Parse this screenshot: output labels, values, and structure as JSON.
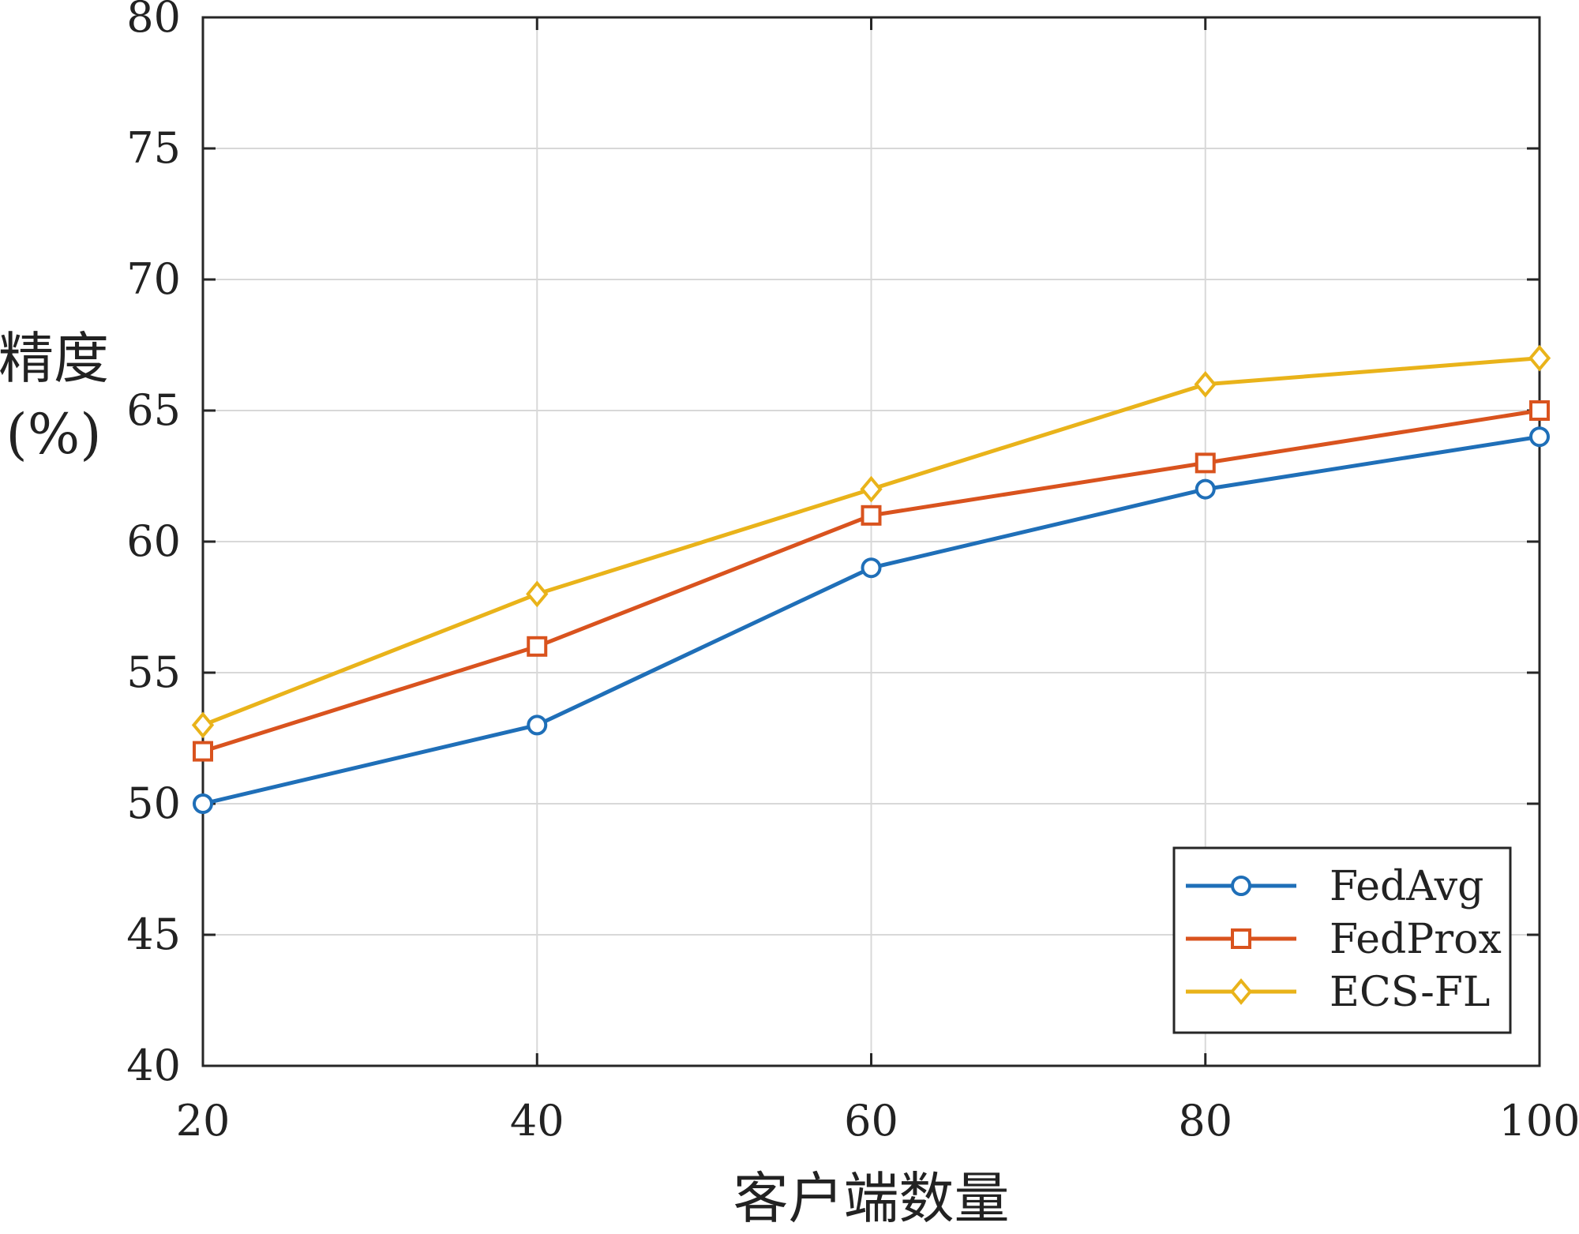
{
  "chart_data": {
    "type": "line",
    "title": "",
    "xlabel": "客户端数量",
    "ylabel": "精度\n(%)",
    "x": [
      20,
      40,
      60,
      80,
      100
    ],
    "xlim": [
      20,
      100
    ],
    "ylim": [
      40,
      80
    ],
    "xticks": [
      "20",
      "40",
      "60",
      "80",
      "100"
    ],
    "yticks": [
      "40",
      "45",
      "50",
      "55",
      "60",
      "65",
      "70",
      "75",
      "80"
    ],
    "grid": true,
    "legend_position": "bottom-right",
    "series": [
      {
        "name": "FedAvg",
        "values": [
          50,
          53,
          59,
          62,
          64
        ],
        "marker": "circle",
        "color": "#1f6fb8"
      },
      {
        "name": "FedProx",
        "values": [
          52,
          56,
          61,
          63,
          65
        ],
        "marker": "square",
        "color": "#d9531e"
      },
      {
        "name": "ECS-FL",
        "values": [
          53,
          58,
          62,
          66,
          67
        ],
        "marker": "diamond",
        "color": "#e9b31a"
      }
    ]
  }
}
